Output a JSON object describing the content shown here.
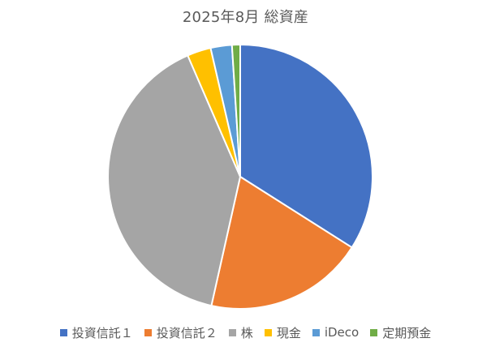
{
  "chart_data": {
    "type": "pie",
    "title": "2025年8月 総資産",
    "categories": [
      "投資信託１",
      "投資信託２",
      "株",
      "現金",
      "iDeco",
      "定期預金"
    ],
    "values": [
      34.0,
      19.5,
      40.0,
      2.9,
      2.6,
      1.0
    ],
    "unit": "percent (estimated share)",
    "colors": [
      "#4472C4",
      "#ED7D31",
      "#A5A5A5",
      "#FFC000",
      "#5B9BD5",
      "#70AD47"
    ],
    "start_angle_deg": 0,
    "direction": "clockwise",
    "legend_position": "bottom",
    "slice_border_color": "#FFFFFF"
  }
}
